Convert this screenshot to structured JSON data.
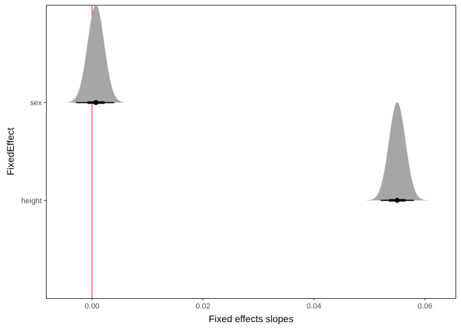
{
  "chart_data": {
    "type": "halfeye",
    "title": "",
    "xlabel": "Fixed effects slopes",
    "ylabel": "FixedEffect",
    "xlim": [
      -0.0083,
      0.0655
    ],
    "x_ticks": [
      0.0,
      0.02,
      0.04,
      0.06
    ],
    "x_tick_labels": [
      "0.00",
      "0.02",
      "0.04",
      "0.06"
    ],
    "categories": [
      "height",
      "sex"
    ],
    "reference_line": {
      "x": 0.0,
      "color": "#e31a1c"
    },
    "fill_color": "#a6a6a6",
    "grid": false,
    "series": [
      {
        "name": "sex",
        "median": 0.0007,
        "sd": 0.0015,
        "interval_66": [
          -0.0008,
          0.0023
        ],
        "interval_95": [
          -0.0029,
          0.004
        ],
        "density_range": [
          -0.0053,
          0.0064
        ]
      },
      {
        "name": "height",
        "median": 0.055,
        "sd": 0.0015,
        "interval_66": [
          0.0535,
          0.0565
        ],
        "interval_95": [
          0.052,
          0.058
        ],
        "density_range": [
          0.0492,
          0.0608
        ]
      }
    ]
  }
}
